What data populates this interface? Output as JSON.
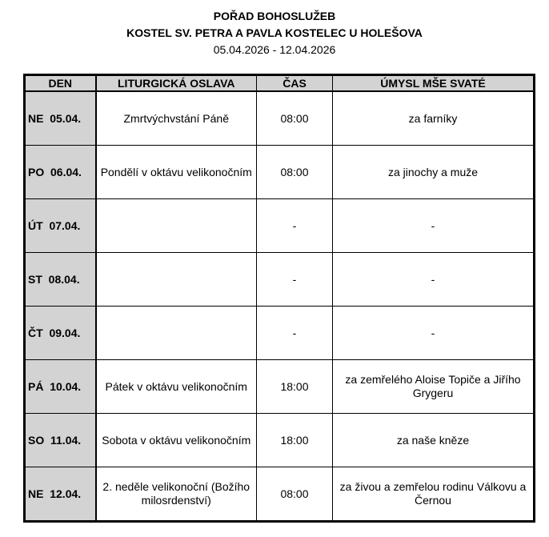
{
  "header": {
    "title": "POŘAD BOHOSLUŽEB",
    "church": "KOSTEL SV. PETRA A PAVLA KOSTELEC U HOLEŠOVA",
    "date_range": "05.04.2026 - 12.04.2026"
  },
  "columns": [
    "DEN",
    "LITURGICKÁ OSLAVA",
    "ČAS",
    "ÚMYSL MŠE SVATÉ"
  ],
  "rows": [
    {
      "day": "NE  05.04.",
      "celebration": "Zmrtvýchvstání Páně",
      "time": "08:00",
      "intention": "za farníky"
    },
    {
      "day": "PO  06.04.",
      "celebration": "Pondělí v oktávu velikonočním",
      "time": "08:00",
      "intention": "za jinochy a muže"
    },
    {
      "day": "ÚT  07.04.",
      "celebration": "",
      "time": "-",
      "intention": "-"
    },
    {
      "day": "ST  08.04.",
      "celebration": "",
      "time": "-",
      "intention": "-"
    },
    {
      "day": "ČT  09.04.",
      "celebration": "",
      "time": "-",
      "intention": "-"
    },
    {
      "day": "PÁ  10.04.",
      "celebration": "Pátek v oktávu velikonočním",
      "time": "18:00",
      "intention": "za zemřelého Aloise Topiče a Jiřího Grygeru"
    },
    {
      "day": "SO  11.04.",
      "celebration": "Sobota v oktávu velikonočním",
      "time": "18:00",
      "intention": "za naše kněze"
    },
    {
      "day": "NE  12.04.",
      "celebration": "2. neděle velikonoční (Božího milosrdenství)",
      "time": "08:00",
      "intention": "za živou a zemřelou rodinu Válkovu a Černou"
    }
  ]
}
